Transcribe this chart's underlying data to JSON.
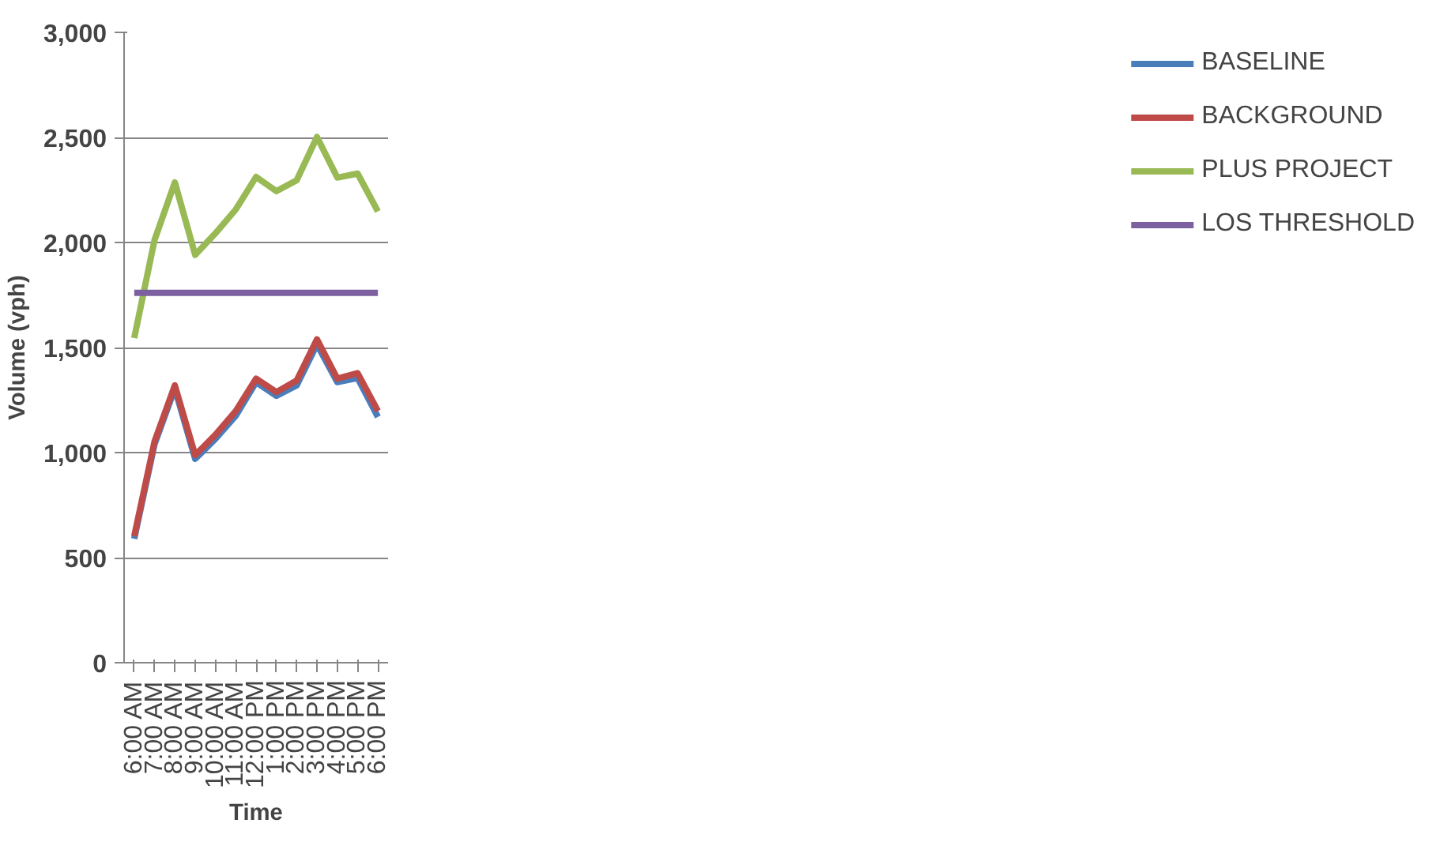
{
  "chart_data": {
    "type": "line",
    "xlabel": "Time",
    "ylabel": "Volume (vph)",
    "categories": [
      "6:00 AM",
      "7:00 AM",
      "8:00 AM",
      "9:00 AM",
      "10:00 AM",
      "11:00 AM",
      "12:00 PM",
      "1:00 PM",
      "2:00 PM",
      "3:00 PM",
      "4:00 PM",
      "5:00 PM",
      "6:00 PM"
    ],
    "series": [
      {
        "name": "BASELINE",
        "color": "#4a7ebb",
        "values": [
          590,
          1040,
          1305,
          970,
          1065,
          1175,
          1335,
          1270,
          1320,
          1515,
          1335,
          1355,
          1170
        ]
      },
      {
        "name": "BACKGROUND",
        "color": "#be4b48",
        "values": [
          602,
          1053,
          1320,
          988,
          1085,
          1198,
          1352,
          1288,
          1343,
          1539,
          1352,
          1378,
          1198
        ]
      },
      {
        "name": "PLUS PROJECT",
        "color": "#98b954",
        "values": [
          1545,
          2012,
          2286,
          1941,
          2044,
          2157,
          2312,
          2244,
          2296,
          2502,
          2309,
          2328,
          2148
        ]
      },
      {
        "name": "LOS THRESHOLD",
        "color": "#7d60a0",
        "values": [
          1760,
          1760,
          1760,
          1760,
          1760,
          1760,
          1760,
          1760,
          1760,
          1760,
          1760,
          1760,
          1760
        ]
      }
    ],
    "ylim": [
      0,
      3000
    ],
    "yticks": [
      {
        "value": 0,
        "label": "0"
      },
      {
        "value": 500,
        "label": "500"
      },
      {
        "value": 1000,
        "label": "1,000"
      },
      {
        "value": 1500,
        "label": "1,500"
      },
      {
        "value": 2000,
        "label": "2,000"
      },
      {
        "value": 2500,
        "label": "2,500"
      },
      {
        "value": 3000,
        "label": "3,000"
      }
    ],
    "grid": "y",
    "legend": "right",
    "marker": "none",
    "line_style": "solid"
  }
}
